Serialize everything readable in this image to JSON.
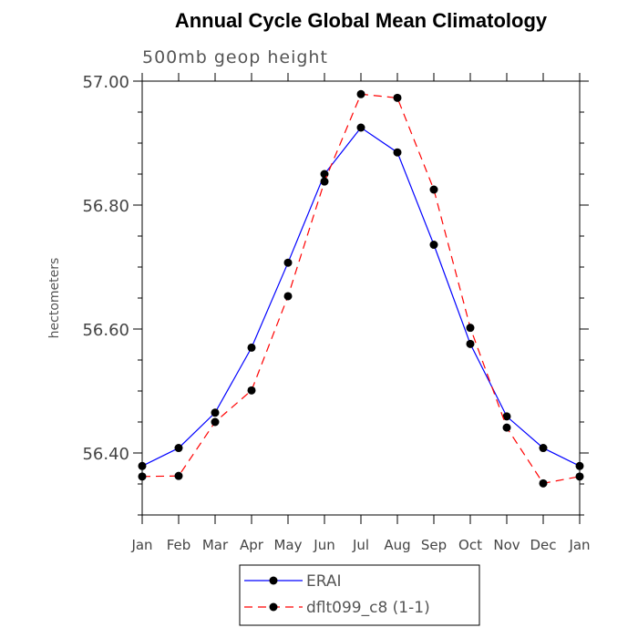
{
  "chart_data": {
    "type": "line",
    "title": "Annual Cycle Global Mean Climatology",
    "subtitle": "500mb geop height",
    "xlabel": "",
    "ylabel": "hectometers",
    "categories": [
      "Jan",
      "Feb",
      "Mar",
      "Apr",
      "May",
      "Jun",
      "Jul",
      "Aug",
      "Sep",
      "Oct",
      "Nov",
      "Dec",
      "Jan"
    ],
    "ylim": [
      56.3,
      57.0
    ],
    "yticks": [
      56.4,
      56.6,
      56.8,
      57.0
    ],
    "ytick_labels": [
      "56.40",
      "56.60",
      "56.80",
      "57.00"
    ],
    "grid": false,
    "legend_position": "bottom-center",
    "series": [
      {
        "name": "ERAI",
        "color": "#0000ff",
        "line_style": "solid",
        "marker": "filled-circle",
        "values": [
          56.379,
          56.408,
          56.465,
          56.57,
          56.707,
          56.85,
          56.925,
          56.885,
          56.736,
          56.576,
          56.459,
          56.408,
          56.379
        ]
      },
      {
        "name": "dflt099_c8 (1-1)",
        "color": "#ff0000",
        "line_style": "dashed",
        "marker": "filled-circle",
        "values": [
          56.362,
          56.363,
          56.45,
          56.501,
          56.653,
          56.838,
          56.979,
          56.973,
          56.825,
          56.602,
          56.441,
          56.351,
          56.362
        ]
      }
    ]
  }
}
